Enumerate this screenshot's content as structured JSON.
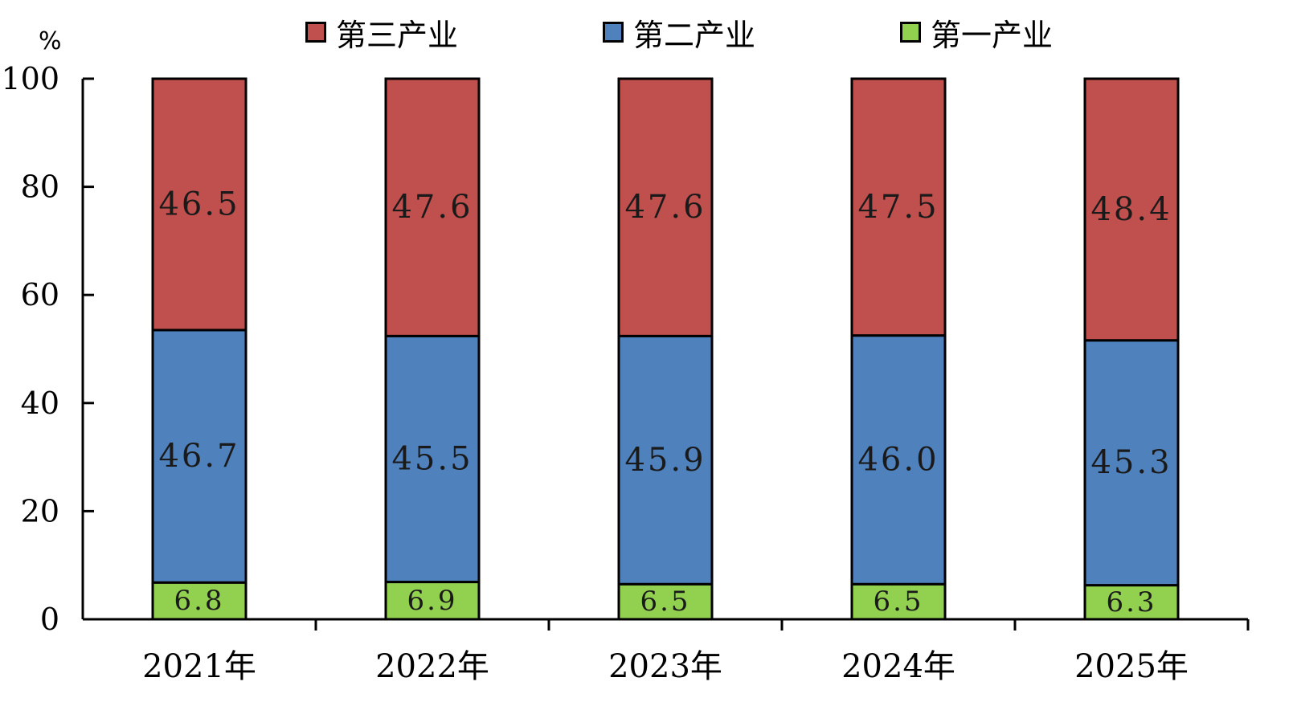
{
  "chart_data": {
    "type": "bar",
    "stacked": true,
    "unit": "%",
    "categories": [
      "2021年",
      "2022年",
      "2023年",
      "2024年",
      "2025年"
    ],
    "series": [
      {
        "name": "第一产业",
        "color": "#92d050",
        "values": [
          6.8,
          6.9,
          6.5,
          6.5,
          6.3
        ]
      },
      {
        "name": "第二产业",
        "color": "#4f81bd",
        "values": [
          46.7,
          45.5,
          45.9,
          46.0,
          45.3
        ]
      },
      {
        "name": "第三产业",
        "color": "#c0504d",
        "values": [
          46.5,
          47.6,
          47.6,
          47.5,
          48.4
        ]
      }
    ],
    "value_labels": {
      "第一产业": [
        "6.8",
        "6.9",
        "6.5",
        "6.5",
        "6.3"
      ],
      "第二产业": [
        "46.7",
        "45.5",
        "45.9",
        "46.0",
        "45.3"
      ],
      "第三产业": [
        "46.5",
        "47.6",
        "47.6",
        "47.5",
        "48.4"
      ]
    },
    "ylim": [
      0,
      100
    ],
    "yticks": [
      "0",
      "20",
      "40",
      "60",
      "80",
      "100"
    ],
    "legend": {
      "placement": "top",
      "order": [
        "第三产业",
        "第二产业",
        "第一产业"
      ]
    },
    "grid": false
  }
}
